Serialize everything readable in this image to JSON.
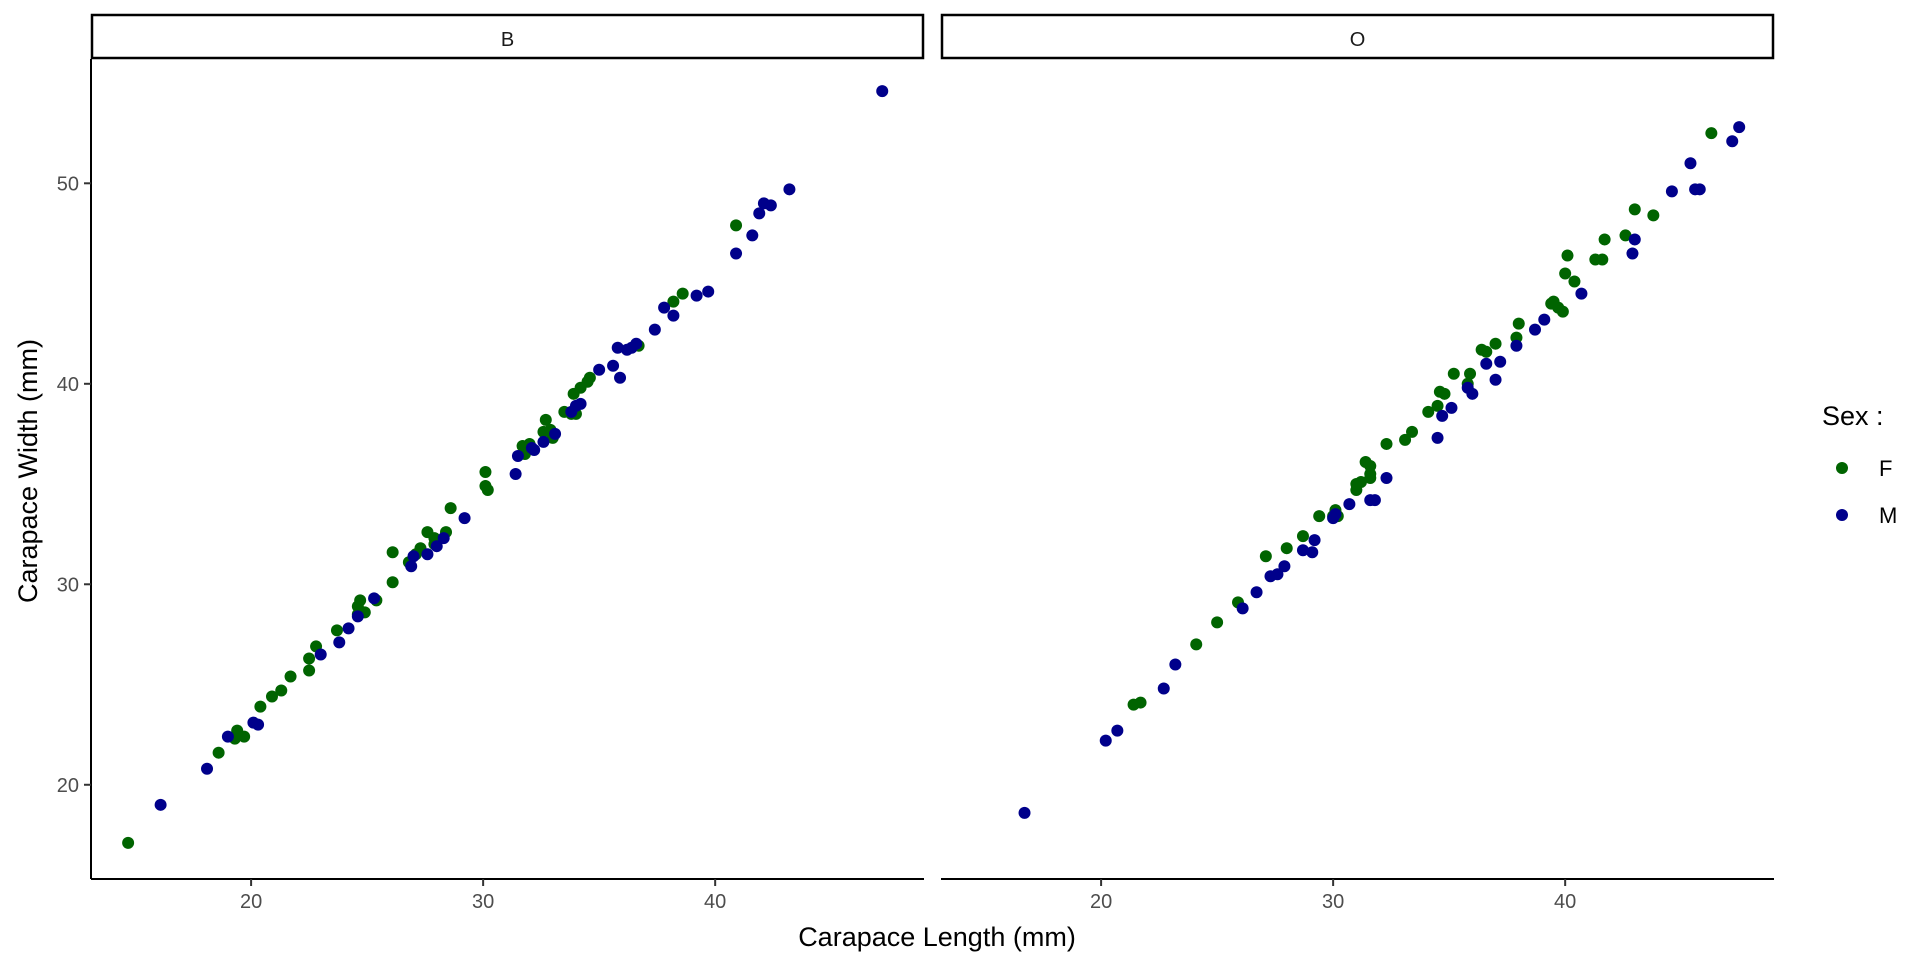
{
  "chart_data": {
    "type": "scatter",
    "xlabel": "Carapace Length (mm)",
    "ylabel": "Carapace Width (mm)",
    "xlim": [
      13.1,
      49.0
    ],
    "ylim": [
      15.3,
      56.2
    ],
    "x_ticks": [
      20,
      30,
      40
    ],
    "y_ticks": [
      20,
      30,
      40,
      50
    ],
    "legend": {
      "title": "Sex :",
      "position": "right",
      "entries": [
        {
          "label": "F",
          "color": "#006400"
        },
        {
          "label": "M",
          "color": "#00008B"
        }
      ]
    },
    "grid": false,
    "panels": [
      {
        "label": "B",
        "series": [
          {
            "name": "F",
            "color": "#006400",
            "points": [
              [
                14.7,
                17.1
              ],
              [
                18.6,
                21.6
              ],
              [
                19.3,
                22.3
              ],
              [
                19.4,
                22.7
              ],
              [
                19.7,
                22.4
              ],
              [
                20.4,
                23.9
              ],
              [
                20.9,
                24.4
              ],
              [
                21.3,
                24.7
              ],
              [
                21.7,
                25.4
              ],
              [
                22.5,
                25.7
              ],
              [
                22.5,
                26.3
              ],
              [
                22.8,
                26.9
              ],
              [
                23.7,
                27.7
              ],
              [
                24.6,
                28.5
              ],
              [
                24.6,
                28.9
              ],
              [
                24.7,
                29.2
              ],
              [
                24.9,
                28.6
              ],
              [
                25.4,
                29.2
              ],
              [
                26.1,
                30.1
              ],
              [
                26.1,
                31.6
              ],
              [
                26.8,
                31.1
              ],
              [
                27.1,
                31.5
              ],
              [
                27.3,
                31.8
              ],
              [
                27.6,
                32.6
              ],
              [
                27.9,
                32.0
              ],
              [
                27.9,
                32.3
              ],
              [
                28.4,
                32.6
              ],
              [
                28.6,
                33.8
              ],
              [
                30.1,
                34.9
              ],
              [
                30.1,
                35.6
              ],
              [
                30.2,
                34.7
              ],
              [
                31.7,
                36.9
              ],
              [
                31.8,
                36.5
              ],
              [
                32.0,
                37.0
              ],
              [
                32.6,
                37.6
              ],
              [
                32.7,
                38.2
              ],
              [
                32.9,
                37.7
              ],
              [
                33.0,
                37.3
              ],
              [
                33.5,
                38.6
              ],
              [
                33.8,
                38.5
              ],
              [
                33.9,
                39.5
              ],
              [
                34.0,
                38.5
              ],
              [
                34.2,
                39.8
              ],
              [
                34.5,
                40.1
              ],
              [
                34.6,
                40.3
              ],
              [
                36.7,
                41.9
              ],
              [
                38.2,
                44.1
              ],
              [
                38.6,
                44.5
              ],
              [
                40.9,
                47.9
              ]
            ]
          },
          {
            "name": "M",
            "color": "#00008B",
            "points": [
              [
                16.1,
                19.0
              ],
              [
                18.1,
                20.8
              ],
              [
                19.0,
                22.4
              ],
              [
                20.1,
                23.1
              ],
              [
                20.3,
                23.0
              ],
              [
                23.0,
                26.5
              ],
              [
                23.8,
                27.1
              ],
              [
                24.2,
                27.8
              ],
              [
                24.6,
                28.4
              ],
              [
                25.3,
                29.3
              ],
              [
                26.9,
                30.9
              ],
              [
                27.0,
                31.4
              ],
              [
                27.6,
                31.5
              ],
              [
                28.0,
                31.9
              ],
              [
                28.3,
                32.3
              ],
              [
                29.2,
                33.3
              ],
              [
                31.4,
                35.5
              ],
              [
                31.5,
                36.4
              ],
              [
                32.1,
                36.8
              ],
              [
                32.2,
                36.7
              ],
              [
                32.6,
                37.1
              ],
              [
                33.1,
                37.5
              ],
              [
                33.8,
                38.6
              ],
              [
                34.0,
                38.9
              ],
              [
                34.2,
                39.0
              ],
              [
                35.0,
                40.7
              ],
              [
                35.6,
                40.9
              ],
              [
                35.8,
                41.8
              ],
              [
                35.9,
                40.3
              ],
              [
                36.2,
                41.7
              ],
              [
                36.4,
                41.8
              ],
              [
                36.6,
                42.0
              ],
              [
                37.4,
                42.7
              ],
              [
                37.8,
                43.8
              ],
              [
                38.2,
                43.4
              ],
              [
                39.2,
                44.4
              ],
              [
                39.7,
                44.6
              ],
              [
                40.9,
                46.5
              ],
              [
                41.6,
                47.4
              ],
              [
                41.9,
                48.5
              ],
              [
                42.1,
                49.0
              ],
              [
                42.4,
                48.9
              ],
              [
                43.2,
                49.7
              ],
              [
                47.2,
                54.6
              ]
            ]
          }
        ]
      },
      {
        "label": "O",
        "series": [
          {
            "name": "F",
            "color": "#006400",
            "points": [
              [
                21.4,
                24.0
              ],
              [
                21.7,
                24.1
              ],
              [
                24.1,
                27.0
              ],
              [
                25.0,
                28.1
              ],
              [
                25.9,
                29.1
              ],
              [
                27.1,
                31.4
              ],
              [
                28.0,
                31.8
              ],
              [
                28.7,
                32.4
              ],
              [
                29.4,
                33.4
              ],
              [
                30.0,
                33.4
              ],
              [
                30.1,
                33.7
              ],
              [
                30.2,
                33.4
              ],
              [
                31.0,
                34.7
              ],
              [
                31.0,
                35.0
              ],
              [
                31.2,
                35.1
              ],
              [
                31.4,
                36.1
              ],
              [
                31.6,
                35.5
              ],
              [
                31.6,
                35.9
              ],
              [
                31.6,
                35.3
              ],
              [
                32.3,
                37.0
              ],
              [
                33.1,
                37.2
              ],
              [
                33.4,
                37.6
              ],
              [
                34.1,
                38.6
              ],
              [
                34.5,
                38.9
              ],
              [
                34.6,
                39.6
              ],
              [
                34.8,
                39.5
              ],
              [
                35.2,
                40.5
              ],
              [
                35.8,
                40.0
              ],
              [
                35.9,
                40.5
              ],
              [
                36.4,
                41.7
              ],
              [
                36.6,
                41.6
              ],
              [
                37.0,
                42.0
              ],
              [
                37.9,
                42.3
              ],
              [
                38.0,
                43.0
              ],
              [
                39.4,
                44.0
              ],
              [
                39.5,
                44.1
              ],
              [
                39.7,
                43.8
              ],
              [
                39.9,
                43.6
              ],
              [
                40.0,
                45.5
              ],
              [
                40.1,
                46.4
              ],
              [
                40.4,
                45.1
              ],
              [
                41.3,
                46.2
              ],
              [
                41.6,
                46.2
              ],
              [
                41.7,
                47.2
              ],
              [
                42.6,
                47.4
              ],
              [
                43.0,
                48.7
              ],
              [
                43.8,
                48.4
              ],
              [
                46.3,
                52.5
              ]
            ]
          },
          {
            "name": "M",
            "color": "#00008B",
            "points": [
              [
                16.7,
                18.6
              ],
              [
                20.2,
                22.2
              ],
              [
                20.7,
                22.7
              ],
              [
                22.7,
                24.8
              ],
              [
                23.2,
                26.0
              ],
              [
                26.1,
                28.8
              ],
              [
                26.7,
                29.6
              ],
              [
                27.3,
                30.4
              ],
              [
                27.6,
                30.5
              ],
              [
                27.9,
                30.9
              ],
              [
                28.7,
                31.7
              ],
              [
                29.1,
                31.6
              ],
              [
                29.2,
                32.2
              ],
              [
                30.0,
                33.3
              ],
              [
                30.1,
                33.5
              ],
              [
                30.7,
                34.0
              ],
              [
                31.6,
                34.2
              ],
              [
                31.8,
                34.2
              ],
              [
                32.3,
                35.3
              ],
              [
                34.5,
                37.3
              ],
              [
                34.7,
                38.4
              ],
              [
                35.1,
                38.8
              ],
              [
                35.8,
                39.8
              ],
              [
                36.0,
                39.5
              ],
              [
                36.6,
                41.0
              ],
              [
                37.0,
                40.2
              ],
              [
                37.2,
                41.1
              ],
              [
                37.9,
                41.9
              ],
              [
                38.7,
                42.7
              ],
              [
                39.1,
                43.2
              ],
              [
                40.7,
                44.5
              ],
              [
                42.9,
                46.5
              ],
              [
                43.0,
                47.2
              ],
              [
                44.6,
                49.6
              ],
              [
                45.4,
                51.0
              ],
              [
                45.6,
                49.7
              ],
              [
                45.8,
                49.7
              ],
              [
                47.2,
                52.1
              ],
              [
                47.5,
                52.8
              ]
            ]
          }
        ]
      }
    ]
  }
}
